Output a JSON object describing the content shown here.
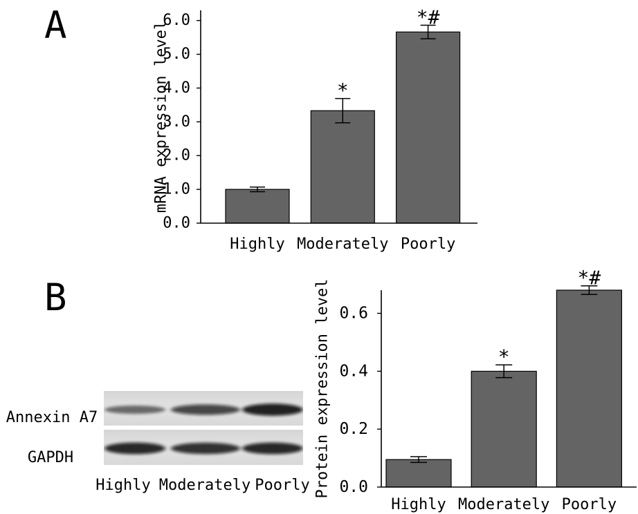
{
  "figure": {
    "panel_labels": [
      "A",
      "B"
    ]
  },
  "blot": {
    "rows": [
      "Annexin A7",
      "GAPDH"
    ],
    "lanes": [
      "Highly",
      "Moderately",
      "Poorly"
    ],
    "band_intensity": [
      [
        0.45,
        0.72,
        0.95
      ],
      [
        0.9,
        0.86,
        0.9
      ]
    ]
  },
  "chart_data": [
    {
      "type": "bar",
      "title": "",
      "xlabel": "",
      "ylabel": "mRNA expression level",
      "categories": [
        "Highly",
        "Moderately",
        "Poorly"
      ],
      "values": [
        1.0,
        3.33,
        5.66
      ],
      "errors": [
        0.07,
        0.36,
        0.2
      ],
      "annotations": [
        "",
        "*",
        "*#"
      ],
      "ylim": [
        0,
        6.3
      ],
      "yticks": [
        "0.0",
        "1.0",
        "2.0",
        "3.0",
        "4.0",
        "5.0",
        "6.0"
      ],
      "grid": false,
      "bar_color": "#646464"
    },
    {
      "type": "bar",
      "title": "",
      "xlabel": "",
      "ylabel": "Protein expression level",
      "categories": [
        "Highly",
        "Moderately",
        "Poorly"
      ],
      "values": [
        0.095,
        0.4,
        0.68
      ],
      "errors": [
        0.01,
        0.022,
        0.015
      ],
      "annotations": [
        "",
        "*",
        "*#"
      ],
      "ylim": [
        0,
        0.68
      ],
      "yticks": [
        "0.0",
        "0.2",
        "0.4",
        "0.6"
      ],
      "grid": false,
      "bar_color": "#646464"
    }
  ]
}
